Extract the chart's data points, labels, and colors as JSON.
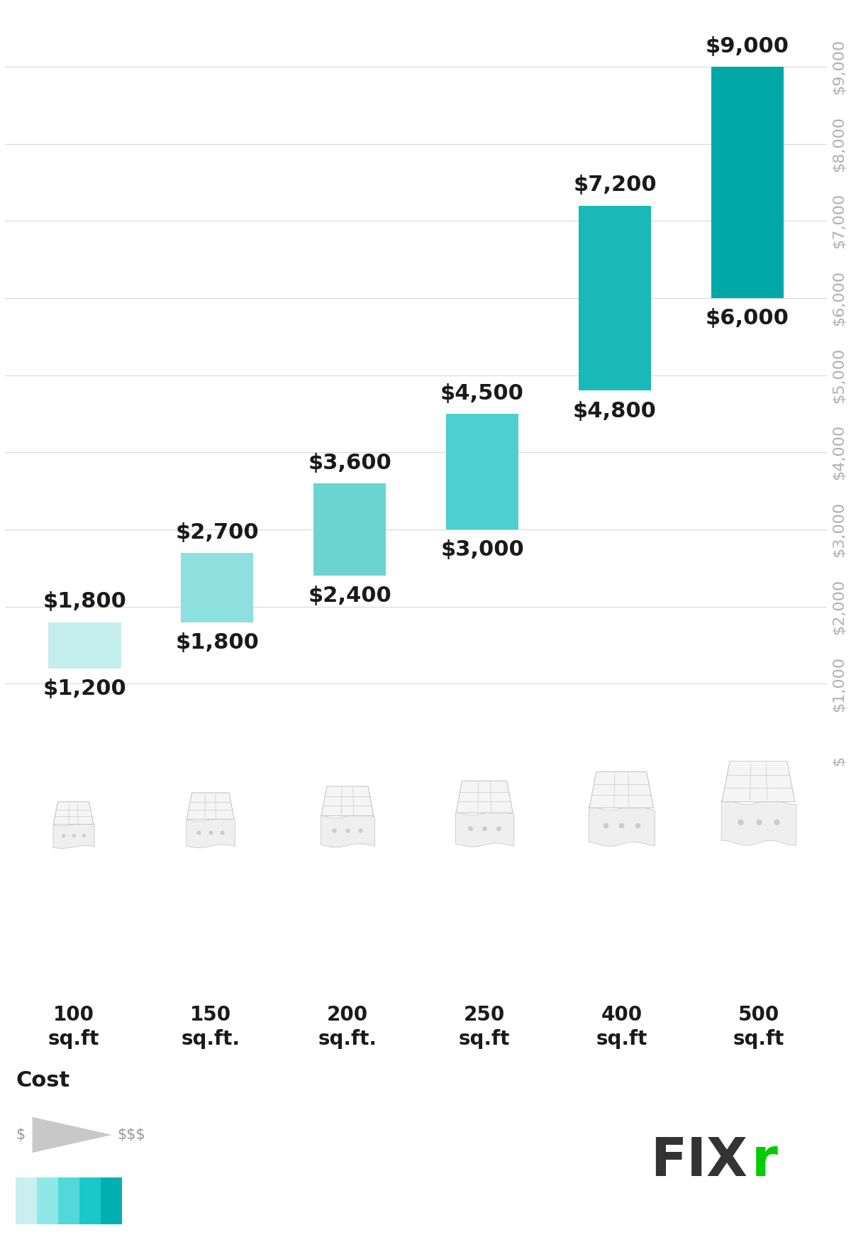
{
  "categories": [
    "100\nsq.ft",
    "150\nsq.ft.",
    "200\nsq.ft.",
    "250\nsq.ft",
    "400\nsq.ft",
    "500\nsq.ft"
  ],
  "low_values": [
    1200,
    1800,
    2400,
    3000,
    4800,
    6000
  ],
  "high_values": [
    1800,
    2700,
    3600,
    4500,
    7200,
    9000
  ],
  "low_labels": [
    "$1,200",
    "$1,800",
    "$2,400",
    "$3,000",
    "$4,800",
    "$6,000"
  ],
  "high_labels": [
    "$1,800",
    "$2,700",
    "$3,600",
    "$4,500",
    "$7,200",
    "$9,000"
  ],
  "bar_colors": [
    "#c4eeee",
    "#8ee0df",
    "#6cd4d0",
    "#4ecece",
    "#1ab8b8",
    "#00a8a8"
  ],
  "ytick_labels": [
    "$",
    "$1,000",
    "$2,000",
    "$3,000",
    "$4,000",
    "$5,000",
    "$6,000",
    "$7,000",
    "$8,000",
    "$9,000"
  ],
  "ytick_values": [
    0,
    1000,
    2000,
    3000,
    4000,
    5000,
    6000,
    7000,
    8000,
    9000
  ],
  "ymax": 9800,
  "grid_color": "#d8d8d8",
  "background_color": "#ffffff",
  "label_fontsize": 22,
  "tick_fontsize": 16,
  "swatch_colors": [
    "#c8f0f0",
    "#8ee8e8",
    "#52d8d8",
    "#1ac8c8",
    "#00b0b0"
  ]
}
